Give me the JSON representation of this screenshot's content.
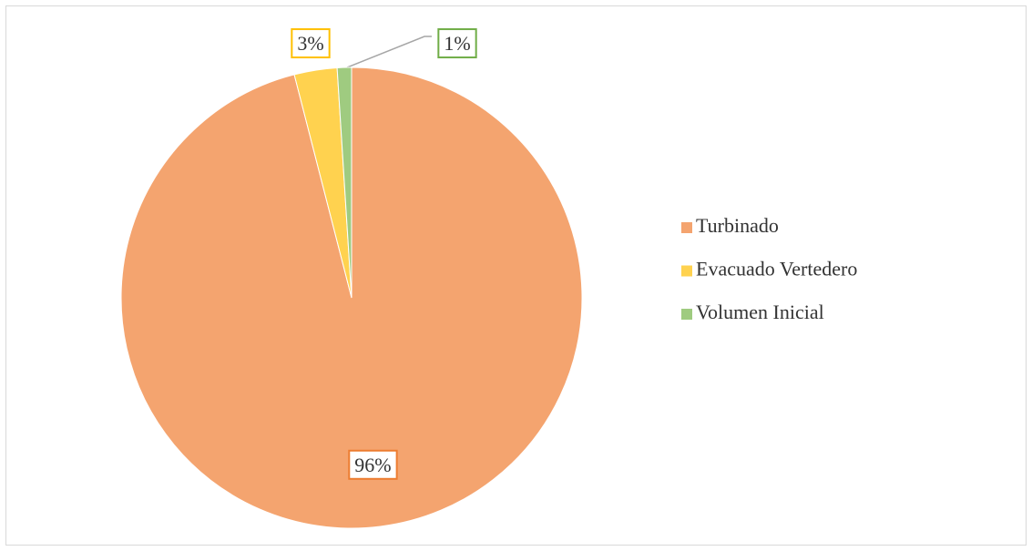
{
  "chart_data": {
    "type": "pie",
    "categories": [
      "Turbinado",
      "Evacuado Vertedero",
      "Volumen Inicial"
    ],
    "values": [
      96,
      3,
      1
    ],
    "value_labels": [
      "96%",
      "3%",
      "1%"
    ],
    "colors": [
      "#f4a46f",
      "#ffd24f",
      "#9fcb80"
    ],
    "label_borders": [
      "#ed7d31",
      "#ffc000",
      "#70ad47"
    ],
    "legend": "right"
  }
}
